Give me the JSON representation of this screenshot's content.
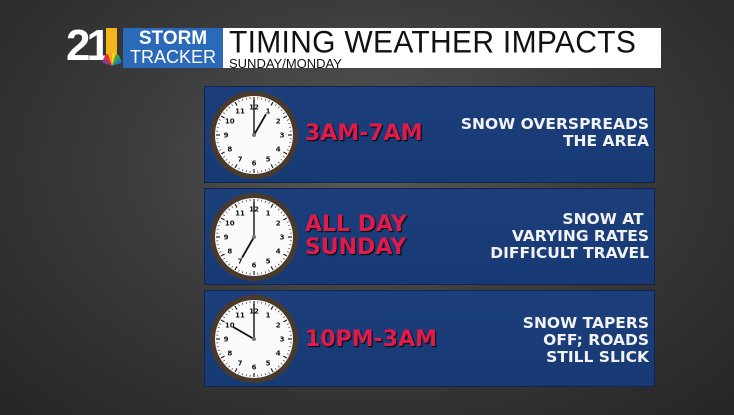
{
  "header": {
    "logo_number": "21",
    "logo_line1": "STORM",
    "logo_line2": "TRACKER",
    "title": "TIMING WEATHER IMPACTS",
    "subtitle": "SUNDAY/MONDAY"
  },
  "colors": {
    "panel": "#1c3f7c",
    "time_text": "#e11a4c",
    "logo_blue": "#2a6ab8",
    "logo_yellow": "#f2b51c"
  },
  "panels": [
    {
      "time": "3AM-7AM",
      "description": "SNOW OVERSPREADS\nTHE AREA",
      "clock": {
        "hour": 1,
        "minute": 0
      }
    },
    {
      "time": "ALL DAY\nSUNDAY",
      "description": "SNOW AT \nVARYING RATES\nDIFFICULT TRAVEL",
      "clock": {
        "hour": 7,
        "minute": 0
      }
    },
    {
      "time": "10PM-3AM",
      "description": "SNOW TAPERS\nOFF; ROADS\nSTILL SLICK",
      "clock": {
        "hour": 10,
        "minute": 0
      }
    }
  ]
}
